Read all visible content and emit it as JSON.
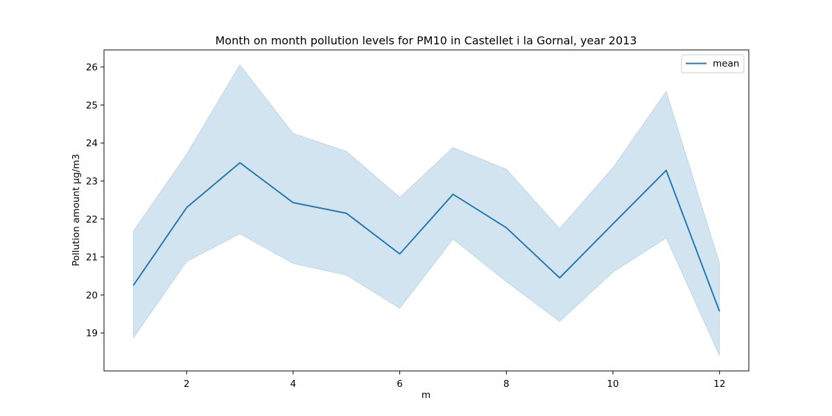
{
  "chart_data": {
    "type": "line",
    "title": "Month on month pollution levels for PM10 in Castellet i la Gornal, year 2013",
    "xlabel": "m",
    "ylabel": "Pollution amount μg/m3",
    "xlim": [
      0.45,
      12.55
    ],
    "ylim": [
      18.0,
      26.45
    ],
    "xticks": [
      2,
      4,
      6,
      8,
      10,
      12
    ],
    "yticks": [
      19,
      20,
      21,
      22,
      23,
      24,
      25,
      26
    ],
    "grid": false,
    "legend": {
      "position": "top-right",
      "entries": [
        "mean"
      ]
    },
    "series": [
      {
        "name": "mean",
        "color": "#1f77b4",
        "x": [
          1,
          2,
          3,
          4,
          5,
          6,
          7,
          8,
          9,
          10,
          11,
          12
        ],
        "values": [
          20.25,
          22.3,
          23.48,
          22.43,
          22.15,
          21.08,
          22.65,
          21.77,
          20.45,
          21.87,
          23.28,
          19.57
        ],
        "lower": [
          18.87,
          20.88,
          21.61,
          20.83,
          20.52,
          19.65,
          21.47,
          20.35,
          19.3,
          20.6,
          21.5,
          18.4
        ],
        "upper": [
          21.68,
          23.7,
          26.06,
          24.25,
          23.78,
          22.57,
          23.88,
          23.31,
          21.75,
          23.35,
          25.36,
          20.84
        ],
        "band_color": "#1f77b4"
      }
    ]
  }
}
